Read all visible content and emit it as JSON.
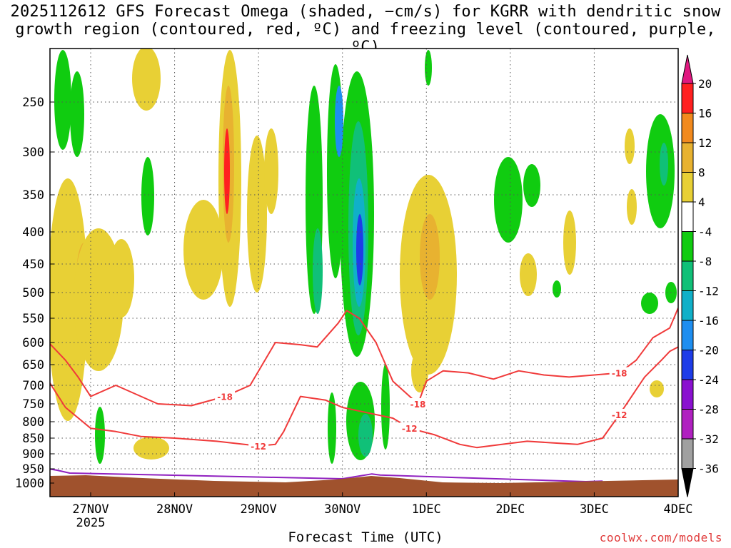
{
  "chart_data": {
    "type": "heatmap",
    "title_line1": "2025112612 GFS Forecast Omega (shaded, −cm/s) for KGRR with dendritic snow",
    "title_line2": "growth region (contoured, red, ºC) and freezing level (contoured, purple, ºC)",
    "xlabel": "Forecast Time (UTC)",
    "ylabel": "",
    "x_ticks": [
      "27NOV",
      "28NOV",
      "29NOV",
      "30NOV",
      "1DEC",
      "2DEC",
      "3DEC",
      "4DEC"
    ],
    "x_tick_values": [
      1,
      2,
      3,
      4,
      5,
      6,
      7,
      8
    ],
    "x_sublabel": "2025",
    "xlim": [
      0.5,
      8.0
    ],
    "y_ticks": [
      250,
      300,
      350,
      400,
      450,
      500,
      550,
      600,
      650,
      700,
      750,
      800,
      850,
      900,
      950,
      1000
    ],
    "ylim": [
      200,
      1015
    ],
    "colorbar": {
      "labels": [
        "20",
        "16",
        "12",
        "8",
        "4",
        "-4",
        "-8",
        "-12",
        "-16",
        "-20",
        "-24",
        "-28",
        "-32",
        "-36"
      ],
      "levels": [
        20,
        16,
        12,
        8,
        4,
        -4,
        -8,
        -12,
        -16,
        -20,
        -24,
        -28,
        -32,
        -36
      ],
      "colors": [
        "#ff2020",
        "#f28a1e",
        "#e8b230",
        "#e8d035",
        "#ffffff",
        "#10cc10",
        "#10c078",
        "#10b0c8",
        "#1e8ef0",
        "#1e3ce8",
        "#8a10d0",
        "#b020c0",
        "#a0a0a0",
        "#000000"
      ],
      "top_color": "#e01880"
    },
    "contour_dgz_label": "-18",
    "contour_dgz_label_2": "-12",
    "contours": [
      {
        "name": "dgz-18",
        "label": "-18",
        "color": "#f03a3a",
        "x": [
          0.5,
          0.7,
          0.85,
          1.0,
          1.3,
          1.8,
          2.2,
          2.6,
          2.9,
          3.2,
          3.5,
          3.7,
          3.95,
          4.05,
          4.2,
          4.4,
          4.6,
          4.9,
          5.0,
          5.2,
          5.5,
          5.8,
          6.1,
          6.4,
          6.7,
          7.0,
          7.3,
          7.5,
          7.7,
          7.9,
          8.0
        ],
        "y": [
          600,
          640,
          680,
          730,
          700,
          750,
          755,
          730,
          700,
          600,
          605,
          610,
          560,
          535,
          550,
          600,
          690,
          750,
          690,
          665,
          670,
          685,
          665,
          675,
          680,
          675,
          670,
          640,
          590,
          570,
          530
        ]
      },
      {
        "name": "dgz-12",
        "label": "-12",
        "color": "#f03a3a",
        "x": [
          0.5,
          0.7,
          1.0,
          1.3,
          1.6,
          2.0,
          2.5,
          3.0,
          3.2,
          3.3,
          3.5,
          3.8,
          4.0,
          4.2,
          4.4,
          4.6,
          4.8,
          5.1,
          5.4,
          5.6,
          5.9,
          6.2,
          6.5,
          6.8,
          7.1,
          7.3,
          7.6,
          7.8,
          7.9,
          8.0
        ],
        "y": [
          690,
          760,
          820,
          830,
          845,
          850,
          860,
          875,
          870,
          830,
          730,
          740,
          760,
          770,
          780,
          790,
          820,
          840,
          870,
          880,
          870,
          860,
          865,
          870,
          850,
          780,
          680,
          640,
          620,
          610
        ]
      },
      {
        "name": "freezing-0",
        "label": "0",
        "color": "#9020c0",
        "x": [
          0.5,
          0.6,
          0.75,
          4.0,
          4.35,
          4.45,
          6.9,
          7.1
        ],
        "y": [
          950,
          955,
          965,
          985,
          968,
          972,
          995,
          993
        ]
      }
    ],
    "features": [
      {
        "name": "rising-motion-band-28nov",
        "x": 1.8,
        "p_top": 200,
        "p_bottom": 900,
        "omega": 20
      },
      {
        "name": "sinking-band-30nov",
        "x": 4.1,
        "p_top": 200,
        "p_bottom": 950,
        "omega": -36
      }
    ],
    "terrain_color": "#a0522d"
  },
  "credit": "coolwx.com/models"
}
